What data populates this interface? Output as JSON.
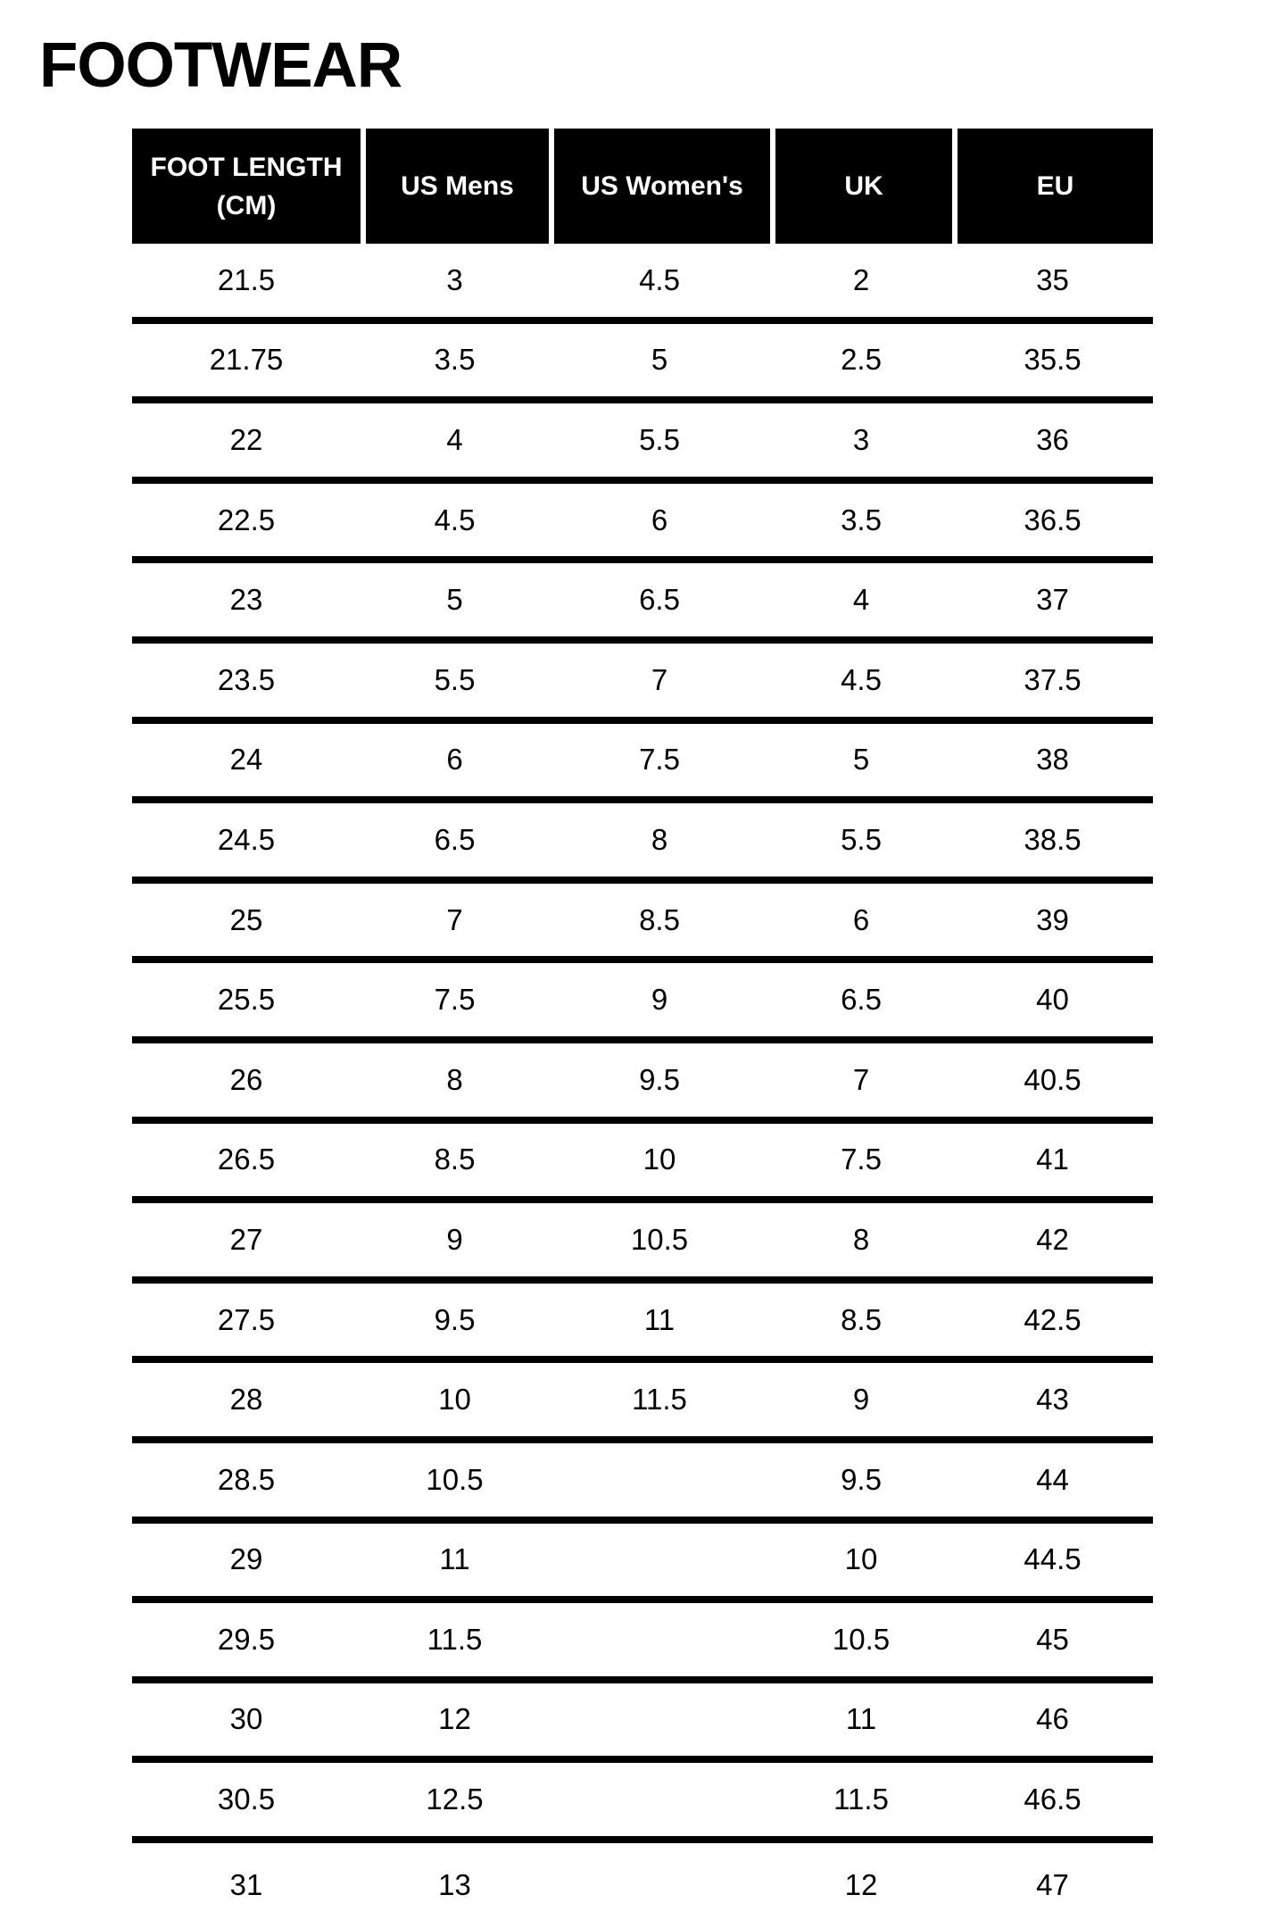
{
  "title": "FOOTWEAR",
  "table": {
    "headers": [
      "FOOT LENGTH (CM)",
      "US Mens",
      "US Women's",
      "UK",
      "EU"
    ],
    "rows": [
      [
        "21.5",
        "3",
        "4.5",
        "2",
        "35"
      ],
      [
        "21.75",
        "3.5",
        "5",
        "2.5",
        "35.5"
      ],
      [
        "22",
        "4",
        "5.5",
        "3",
        "36"
      ],
      [
        "22.5",
        "4.5",
        "6",
        "3.5",
        "36.5"
      ],
      [
        "23",
        "5",
        "6.5",
        "4",
        "37"
      ],
      [
        "23.5",
        "5.5",
        "7",
        "4.5",
        "37.5"
      ],
      [
        "24",
        "6",
        "7.5",
        "5",
        "38"
      ],
      [
        "24.5",
        "6.5",
        "8",
        "5.5",
        "38.5"
      ],
      [
        "25",
        "7",
        "8.5",
        "6",
        "39"
      ],
      [
        "25.5",
        "7.5",
        "9",
        "6.5",
        "40"
      ],
      [
        "26",
        "8",
        "9.5",
        "7",
        "40.5"
      ],
      [
        "26.5",
        "8.5",
        "10",
        "7.5",
        "41"
      ],
      [
        "27",
        "9",
        "10.5",
        "8",
        "42"
      ],
      [
        "27.5",
        "9.5",
        "11",
        "8.5",
        "42.5"
      ],
      [
        "28",
        "10",
        "11.5",
        "9",
        "43"
      ],
      [
        "28.5",
        "10.5",
        "",
        "9.5",
        "44"
      ],
      [
        "29",
        "11",
        "",
        "10",
        "44.5"
      ],
      [
        "29.5",
        "11.5",
        "",
        "10.5",
        "45"
      ],
      [
        "30",
        "12",
        "",
        "11",
        "46"
      ],
      [
        "30.5",
        "12.5",
        "",
        "11.5",
        "46.5"
      ],
      [
        "31",
        "13",
        "",
        "12",
        "47"
      ]
    ]
  },
  "colors": {
    "page_bg": "#ffffff",
    "header_bg": "#000000",
    "header_text": "#ffffff",
    "header_divider": "#ffffff",
    "body_text": "#000000",
    "row_divider": "#000000"
  }
}
